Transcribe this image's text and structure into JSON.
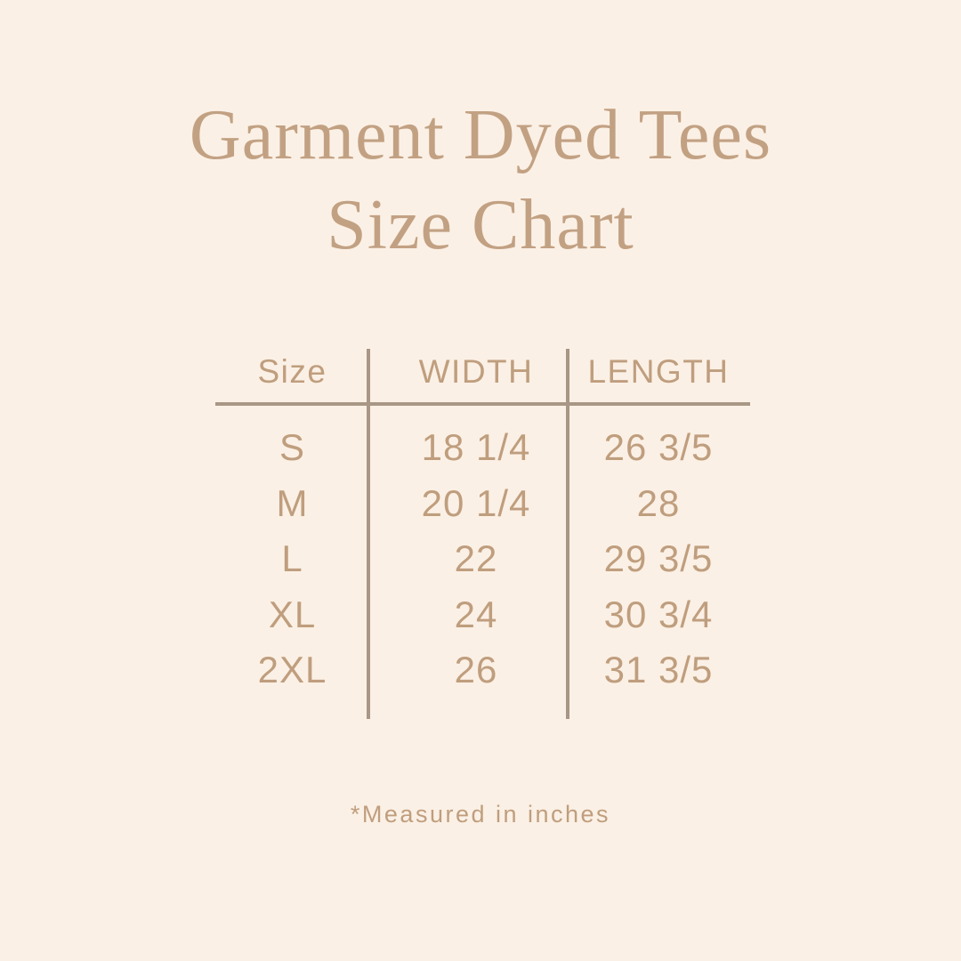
{
  "poster": {
    "title": {
      "line1": "Garment Dyed Tees",
      "line2": "Size Chart"
    },
    "size_chart": {
      "headers": {
        "size": "Size",
        "width": "WIDTH",
        "length": "LENGTH"
      },
      "rows": [
        {
          "size": "S",
          "width": "18 1/4",
          "length": "26 3/5"
        },
        {
          "size": "M",
          "width": "20 1/4",
          "length": "28"
        },
        {
          "size": "L",
          "width": "22",
          "length": "29 3/5"
        },
        {
          "size": "XL",
          "width": "24",
          "length": "30 3/4"
        },
        {
          "size": "2XL",
          "width": "26",
          "length": "31 3/5"
        }
      ],
      "units_note": "*Measured in inches"
    },
    "colors": {
      "background": "#fbf0e5",
      "title_text": "#c2a183",
      "table_text": "#bf9e7e",
      "rule_lines": "#a89786"
    }
  }
}
